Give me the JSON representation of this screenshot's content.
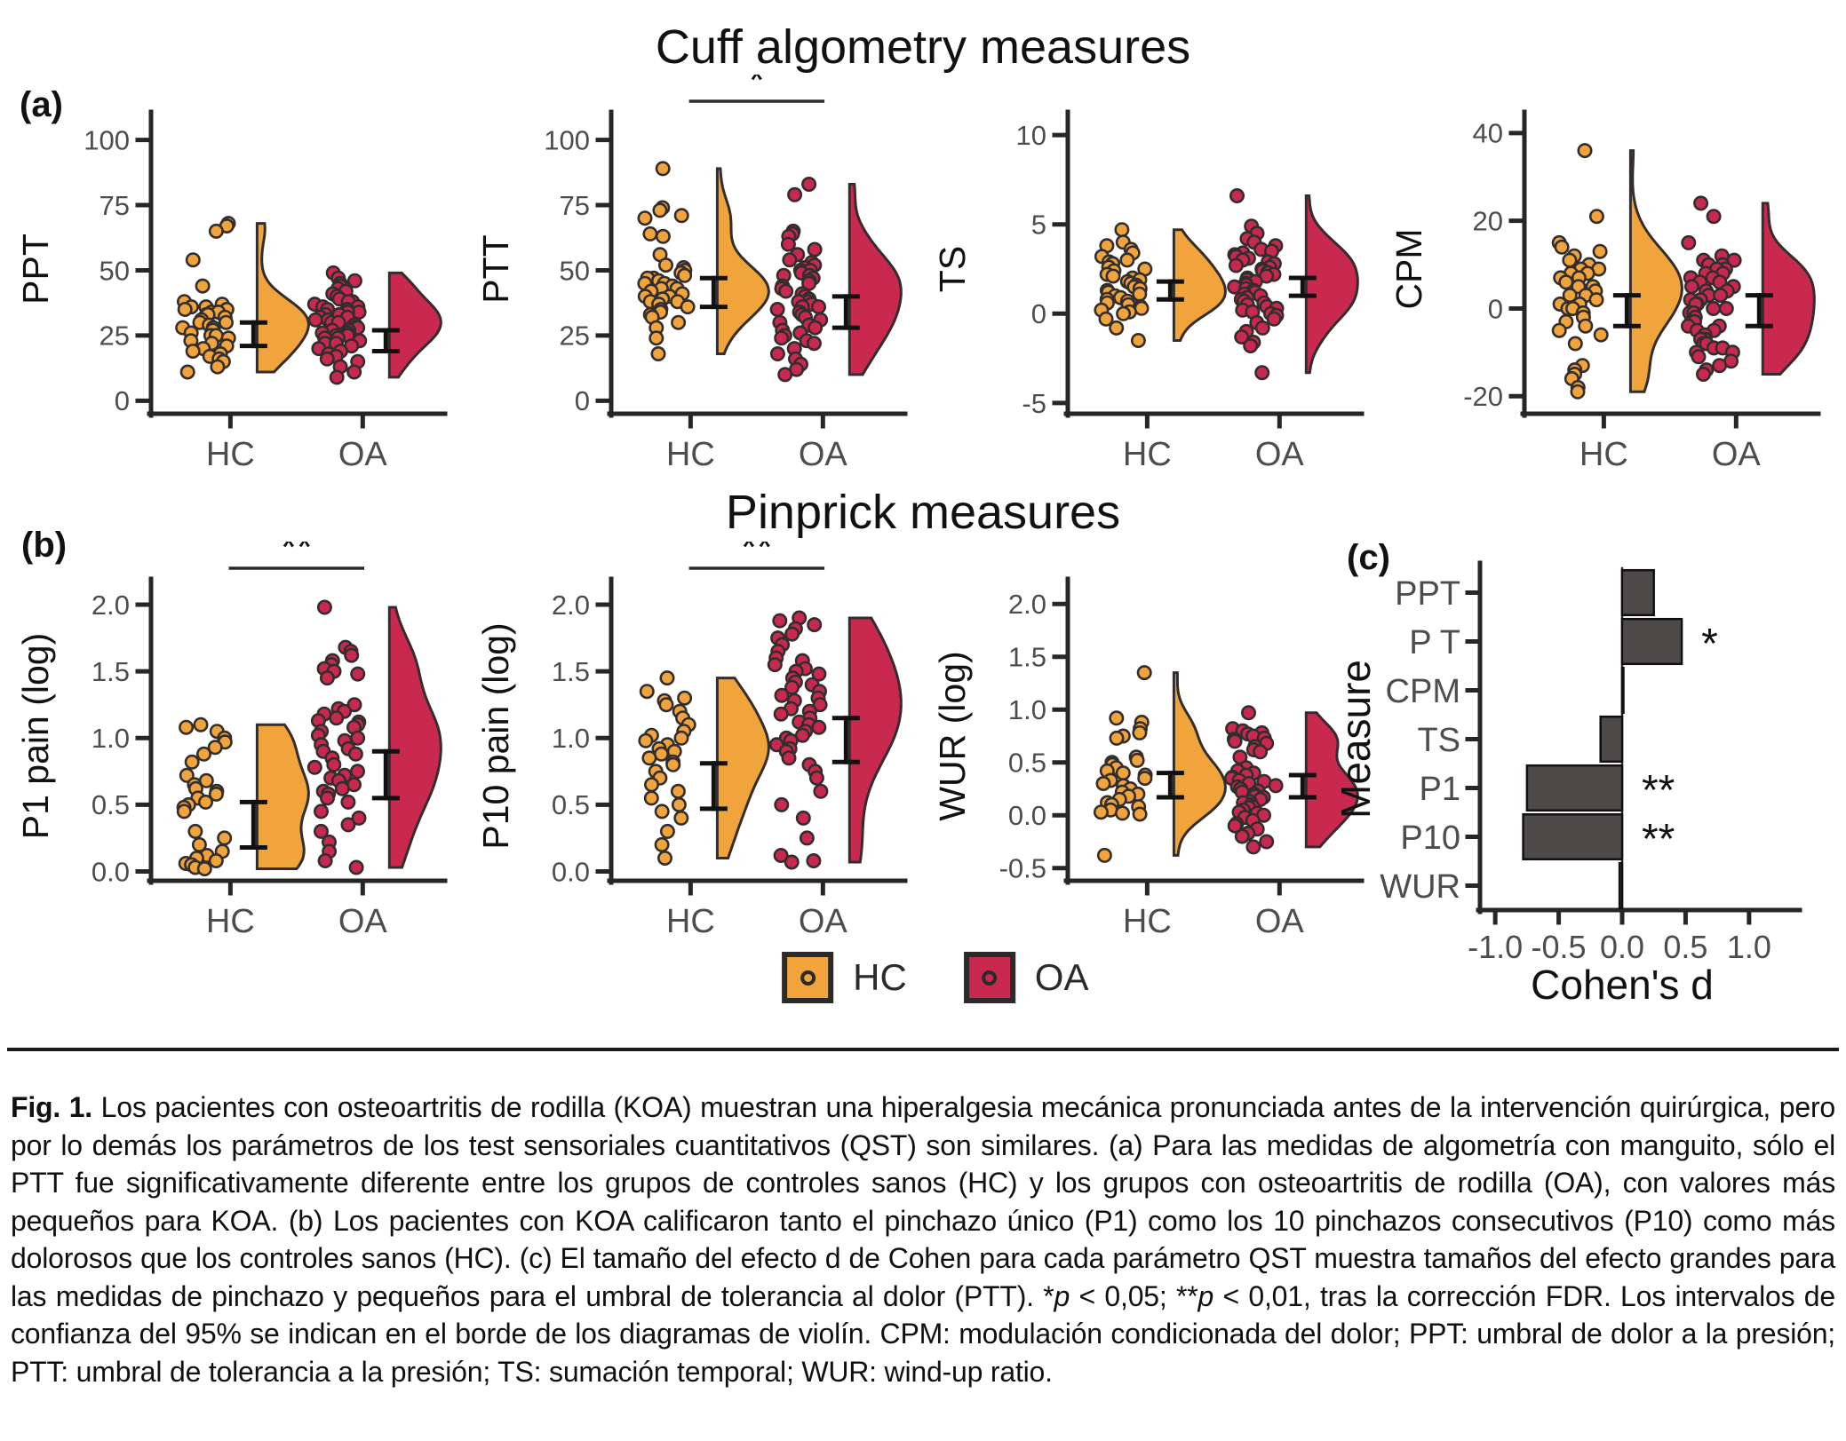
{
  "colors": {
    "hc": "#F2A43C",
    "oa": "#C9294E",
    "outline": "#332e2e",
    "axis": "#262626",
    "tick_label": "#4d4d4d",
    "text": "#111111",
    "bar": "#4f4a4a"
  },
  "section_a": {
    "label": "(a)",
    "title": "Cuff algometry measures"
  },
  "section_b": {
    "label": "(b)",
    "title": "Pinprick measures"
  },
  "section_c": {
    "label": "(c)"
  },
  "legend": {
    "items": [
      {
        "label": "HC",
        "color_key": "hc"
      },
      {
        "label": "OA",
        "color_key": "oa"
      }
    ]
  },
  "caption": {
    "segments": [
      {
        "text": "Fig. 1.",
        "bold": true
      },
      {
        "text": " Los pacientes con osteoartritis de rodilla (KOA) muestran una hiperalgesia mecánica pronunciada antes de la intervención quirúrgica, pero por lo demás los parámetros de los test sensoriales cuantitativos (QST) son similares. (a) Para las medidas de algometría con manguito, sólo el PTT fue significativamente diferente entre los grupos de controles sanos (HC) y los grupos con osteoartritis de rodilla (OA), con valores más pequeños para KOA. (b) Los pacientes con KOA calificaron tanto el pinchazo único (P1) como los 10 pinchazos consecutivos (P10) como más dolorosos que los controles sanos (HC). (c) El tamaño del efecto d de Cohen para cada parámetro QST muestra tamaños del efecto grandes para las medidas de pinchazo y pequeños para el umbral de tolerancia al dolor (PTT). *"
      },
      {
        "text": "p",
        "italic": true
      },
      {
        "text": " < 0,05; **"
      },
      {
        "text": "p",
        "italic": true
      },
      {
        "text": " < 0,01, tras la corrección FDR. Los intervalos de confianza del 95% se indican en el borde de los diagramas de violín. CPM: modulación condicionada del dolor; PPT: umbral de dolor a la presión; PTT: umbral de tolerancia a la presión; TS: sumación temporal; WUR: wind-up ratio."
      }
    ]
  },
  "chart_data": [
    {
      "id": "ppt",
      "type": "raincloud",
      "ylabel": "PPT",
      "ylim": [
        -5,
        106
      ],
      "yticks": [
        0,
        25,
        50,
        75,
        100
      ],
      "ytick_labels": [
        "0",
        "25",
        "50",
        "75",
        "100"
      ],
      "categories": [
        "HC",
        "OA"
      ],
      "significance": null,
      "series": [
        {
          "name": "HC",
          "color": "hc",
          "ci": [
            21,
            30
          ],
          "values": [
            68,
            67,
            65,
            54,
            44,
            38,
            37,
            36,
            36,
            35,
            35,
            34,
            34,
            33,
            33,
            32,
            31,
            30,
            30,
            29,
            28,
            28,
            27,
            26,
            25,
            25,
            24,
            23,
            22,
            21,
            20,
            19,
            18,
            17,
            16,
            15,
            13,
            11
          ]
        },
        {
          "name": "OA",
          "color": "oa",
          "ci": [
            19,
            27
          ],
          "values": [
            49,
            47,
            46,
            45,
            44,
            43,
            42,
            41,
            40,
            39,
            38,
            38,
            37,
            36,
            36,
            35,
            35,
            34,
            34,
            33,
            33,
            32,
            32,
            31,
            31,
            30,
            30,
            29,
            29,
            28,
            28,
            27,
            27,
            26,
            26,
            25,
            25,
            24,
            24,
            23,
            22,
            22,
            21,
            20,
            19,
            18,
            17,
            16,
            15,
            13,
            11,
            9
          ]
        }
      ]
    },
    {
      "id": "ptt",
      "type": "raincloud",
      "ylabel": "PTT",
      "ylim": [
        -5,
        106
      ],
      "yticks": [
        0,
        25,
        50,
        75,
        100
      ],
      "ytick_labels": [
        "0",
        "25",
        "50",
        "75",
        "100"
      ],
      "categories": [
        "HC",
        "OA"
      ],
      "significance": "*",
      "series": [
        {
          "name": "HC",
          "color": "hc",
          "ci": [
            36,
            47
          ],
          "values": [
            89,
            74,
            73,
            71,
            70,
            64,
            63,
            56,
            52,
            51,
            50,
            49,
            48,
            47,
            47,
            46,
            45,
            45,
            44,
            43,
            43,
            42,
            41,
            40,
            40,
            39,
            38,
            38,
            37,
            36,
            35,
            34,
            33,
            32,
            30,
            28,
            24,
            18
          ]
        },
        {
          "name": "OA",
          "color": "oa",
          "ci": [
            28,
            40
          ],
          "values": [
            83,
            79,
            65,
            64,
            63,
            60,
            58,
            56,
            54,
            53,
            52,
            51,
            50,
            50,
            49,
            48,
            48,
            47,
            46,
            46,
            45,
            44,
            43,
            42,
            41,
            40,
            39,
            38,
            38,
            37,
            36,
            36,
            35,
            34,
            33,
            32,
            31,
            30,
            29,
            28,
            27,
            26,
            25,
            24,
            23,
            22,
            20,
            18,
            16,
            14,
            12,
            10
          ]
        }
      ]
    },
    {
      "id": "ts",
      "type": "raincloud",
      "ylabel": "TS",
      "ylim": [
        -5.6,
        10.6
      ],
      "yticks": [
        -5,
        0,
        5,
        10
      ],
      "ytick_labels": [
        "-5",
        "0",
        "5",
        "10"
      ],
      "categories": [
        "HC",
        "OA"
      ],
      "significance": null,
      "series": [
        {
          "name": "HC",
          "color": "hc",
          "ci": [
            0.8,
            1.8
          ],
          "values": [
            4.7,
            4.0,
            3.8,
            3.6,
            3.4,
            3.2,
            3.0,
            2.9,
            2.8,
            2.6,
            2.5,
            2.4,
            2.2,
            2.1,
            2.0,
            1.9,
            1.8,
            1.7,
            1.6,
            1.5,
            1.4,
            1.3,
            1.2,
            1.1,
            1.0,
            0.9,
            0.8,
            0.7,
            0.6,
            0.5,
            0.4,
            0.3,
            0.2,
            0.1,
            0.0,
            -0.3,
            -0.8,
            -1.5
          ]
        },
        {
          "name": "OA",
          "color": "oa",
          "ci": [
            1.0,
            2.0
          ],
          "values": [
            6.6,
            4.9,
            4.5,
            4.2,
            4.0,
            3.8,
            3.6,
            3.5,
            3.4,
            3.3,
            3.2,
            3.1,
            3.0,
            2.9,
            2.8,
            2.7,
            2.6,
            2.5,
            2.4,
            2.3,
            2.2,
            2.1,
            2.0,
            1.9,
            1.8,
            1.7,
            1.6,
            1.5,
            1.4,
            1.3,
            1.2,
            1.1,
            1.0,
            0.9,
            0.8,
            0.7,
            0.6,
            0.5,
            0.4,
            0.3,
            0.2,
            0.1,
            0.0,
            -0.1,
            -0.3,
            -0.5,
            -0.8,
            -1.0,
            -1.3,
            -1.6,
            -1.8,
            -3.3
          ]
        }
      ]
    },
    {
      "id": "cpm",
      "type": "raincloud",
      "ylabel": "CPM",
      "ylim": [
        -24,
        42
      ],
      "yticks": [
        -20,
        0,
        20,
        40
      ],
      "ytick_labels": [
        "-20",
        "0",
        "20",
        "40"
      ],
      "categories": [
        "HC",
        "OA"
      ],
      "significance": null,
      "series": [
        {
          "name": "HC",
          "color": "hc",
          "ci": [
            -4,
            3
          ],
          "values": [
            36,
            21,
            15,
            14,
            13,
            12,
            11,
            10,
            9,
            9,
            8,
            8,
            7,
            7,
            6,
            5,
            5,
            4,
            3,
            3,
            2,
            1,
            1,
            0,
            0,
            -1,
            -2,
            -3,
            -4,
            -5,
            -6,
            -8,
            -13,
            -14,
            -15,
            -16,
            -18,
            -19
          ]
        },
        {
          "name": "OA",
          "color": "oa",
          "ci": [
            -4,
            3
          ],
          "values": [
            24,
            21,
            15,
            12,
            11,
            11,
            10,
            10,
            9,
            9,
            8,
            8,
            7,
            7,
            6,
            6,
            5,
            5,
            4,
            4,
            3,
            3,
            2,
            2,
            1,
            1,
            0,
            0,
            -1,
            -1,
            -2,
            -2,
            -3,
            -3,
            -4,
            -4,
            -5,
            -5,
            -6,
            -7,
            -7,
            -8,
            -8,
            -9,
            -9,
            -10,
            -10,
            -11,
            -12,
            -13,
            -14,
            -15
          ]
        }
      ]
    },
    {
      "id": "p1",
      "type": "raincloud",
      "ylabel": "P1 pain (log)",
      "ylim": [
        -0.07,
        2.1
      ],
      "yticks": [
        0.0,
        0.5,
        1.0,
        1.5,
        2.0
      ],
      "ytick_labels": [
        "0.0",
        "0.5",
        "1.0",
        "1.5",
        "2.0"
      ],
      "categories": [
        "HC",
        "OA"
      ],
      "significance": "**",
      "series": [
        {
          "name": "HC",
          "color": "hc",
          "ci": [
            0.18,
            0.52
          ],
          "values": [
            1.1,
            1.08,
            1.05,
            1.0,
            0.97,
            0.93,
            0.88,
            0.82,
            0.72,
            0.68,
            0.65,
            0.62,
            0.6,
            0.58,
            0.55,
            0.52,
            0.5,
            0.48,
            0.45,
            0.3,
            0.25,
            0.2,
            0.15,
            0.12,
            0.1,
            0.08,
            0.06,
            0.05,
            0.03,
            0.02
          ]
        },
        {
          "name": "OA",
          "color": "oa",
          "ci": [
            0.55,
            0.9
          ],
          "values": [
            1.98,
            1.68,
            1.65,
            1.62,
            1.58,
            1.55,
            1.52,
            1.5,
            1.48,
            1.45,
            1.25,
            1.22,
            1.2,
            1.18,
            1.15,
            1.13,
            1.12,
            1.1,
            1.08,
            1.05,
            1.02,
            1.0,
            0.98,
            0.95,
            0.92,
            0.9,
            0.88,
            0.85,
            0.8,
            0.78,
            0.75,
            0.72,
            0.7,
            0.68,
            0.65,
            0.62,
            0.6,
            0.58,
            0.55,
            0.52,
            0.45,
            0.4,
            0.35,
            0.3,
            0.22,
            0.15,
            0.08,
            0.03
          ]
        }
      ]
    },
    {
      "id": "p10",
      "type": "raincloud",
      "ylabel": "P10 pain (log)",
      "ylim": [
        -0.07,
        2.1
      ],
      "yticks": [
        0.0,
        0.5,
        1.0,
        1.5,
        2.0
      ],
      "ytick_labels": [
        "0.0",
        "0.5",
        "1.0",
        "1.5",
        "2.0"
      ],
      "categories": [
        "HC",
        "OA"
      ],
      "significance": "**",
      "series": [
        {
          "name": "HC",
          "color": "hc",
          "ci": [
            0.47,
            0.81
          ],
          "values": [
            1.45,
            1.35,
            1.3,
            1.28,
            1.25,
            1.2,
            1.15,
            1.1,
            1.05,
            1.02,
            1.0,
            0.98,
            0.95,
            0.92,
            0.9,
            0.88,
            0.85,
            0.82,
            0.8,
            0.75,
            0.7,
            0.65,
            0.6,
            0.55,
            0.5,
            0.45,
            0.4,
            0.3,
            0.2,
            0.1
          ]
        },
        {
          "name": "OA",
          "color": "oa",
          "ci": [
            0.82,
            1.15
          ],
          "values": [
            1.9,
            1.88,
            1.85,
            1.82,
            1.78,
            1.75,
            1.7,
            1.65,
            1.6,
            1.58,
            1.55,
            1.52,
            1.5,
            1.48,
            1.45,
            1.42,
            1.4,
            1.38,
            1.35,
            1.32,
            1.3,
            1.28,
            1.25,
            1.22,
            1.2,
            1.18,
            1.15,
            1.12,
            1.1,
            1.08,
            1.05,
            1.02,
            1.0,
            0.98,
            0.95,
            0.92,
            0.9,
            0.85,
            0.8,
            0.75,
            0.7,
            0.6,
            0.5,
            0.4,
            0.25,
            0.12,
            0.08,
            0.07
          ]
        }
      ]
    },
    {
      "id": "wur",
      "type": "raincloud",
      "ylabel": "WUR (log)",
      "ylim": [
        -0.62,
        2.12
      ],
      "yticks": [
        -0.5,
        0.0,
        0.5,
        1.0,
        1.5,
        2.0
      ],
      "ytick_labels": [
        "-0.5",
        "0.0",
        "0.5",
        "1.0",
        "1.5",
        "2.0"
      ],
      "categories": [
        "HC",
        "OA"
      ],
      "significance": null,
      "series": [
        {
          "name": "HC",
          "color": "hc",
          "ci": [
            0.17,
            0.4
          ],
          "values": [
            1.35,
            0.92,
            0.88,
            0.82,
            0.78,
            0.75,
            0.73,
            0.55,
            0.52,
            0.5,
            0.48,
            0.45,
            0.42,
            0.4,
            0.38,
            0.35,
            0.33,
            0.3,
            0.28,
            0.25,
            0.22,
            0.2,
            0.18,
            0.15,
            0.12,
            0.1,
            0.08,
            0.05,
            0.03,
            0.02,
            0.01,
            -0.38
          ]
        },
        {
          "name": "OA",
          "color": "oa",
          "ci": [
            0.17,
            0.38
          ],
          "values": [
            0.97,
            0.82,
            0.8,
            0.78,
            0.77,
            0.75,
            0.73,
            0.72,
            0.7,
            0.68,
            0.65,
            0.62,
            0.6,
            0.55,
            0.45,
            0.42,
            0.4,
            0.38,
            0.36,
            0.35,
            0.33,
            0.32,
            0.3,
            0.28,
            0.27,
            0.25,
            0.23,
            0.22,
            0.2,
            0.18,
            0.17,
            0.15,
            0.13,
            0.12,
            0.1,
            0.08,
            0.07,
            0.05,
            0.03,
            0.02,
            0.0,
            -0.02,
            -0.05,
            -0.08,
            -0.1,
            -0.13,
            -0.17,
            -0.2,
            -0.25,
            -0.3
          ]
        }
      ]
    },
    {
      "id": "cohend",
      "type": "bar",
      "title": "",
      "xlabel": "Cohen's d",
      "ylabel": "Measure",
      "categories": [
        "PPT",
        "P T",
        "CPM",
        "TS",
        "P1",
        "P10",
        "WUR"
      ],
      "values": [
        0.25,
        0.47,
        0.01,
        -0.17,
        -0.75,
        -0.78,
        -0.02
      ],
      "annotations": [
        "",
        "*",
        "",
        "",
        "**",
        "**",
        ""
      ],
      "xlim": [
        -1.12,
        1.12
      ],
      "xticks": [
        -1.0,
        -0.5,
        0.0,
        0.5,
        1.0
      ],
      "xtick_labels": [
        "-1.0",
        "-0.5",
        "0.0",
        "0.5",
        "1.0"
      ]
    }
  ]
}
